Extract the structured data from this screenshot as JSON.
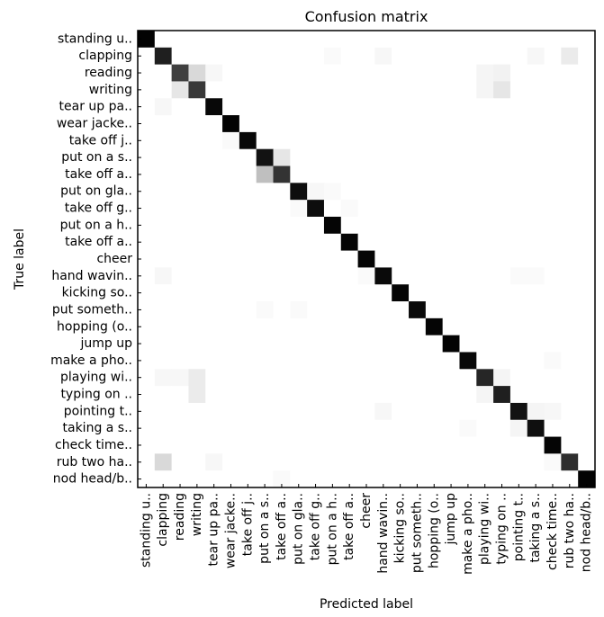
{
  "chart_data": {
    "type": "heatmap",
    "title": "Confusion matrix",
    "xlabel": "Predicted label",
    "ylabel": "True label",
    "labels": [
      "standing u..",
      "clapping",
      "reading",
      "writing",
      "tear up pa..",
      "wear jacke..",
      "take off j..",
      "put on a s..",
      "take off a..",
      "put on gla..",
      "take off g..",
      "put on a h..",
      "take off a..",
      "cheer",
      "hand wavin..",
      "kicking so..",
      "put someth..",
      "hopping (o..",
      "jump up",
      "make a pho..",
      "playing wi..",
      "typing on ..",
      "pointing t..",
      "taking a s..",
      "check time..",
      "rub two ha..",
      "nod head/b.."
    ],
    "colormap": "greys",
    "value_range": [
      0,
      1
    ],
    "matrix": [
      [
        0.99,
        0,
        0,
        0,
        0,
        0,
        0,
        0,
        0,
        0,
        0,
        0,
        0,
        0,
        0,
        0,
        0,
        0,
        0,
        0,
        0,
        0,
        0,
        0,
        0,
        0,
        0
      ],
      [
        0,
        0.88,
        0,
        0,
        0,
        0,
        0,
        0,
        0,
        0,
        0,
        0.02,
        0,
        0,
        0.03,
        0,
        0,
        0,
        0,
        0,
        0,
        0,
        0,
        0.03,
        0,
        0.08,
        0
      ],
      [
        0,
        0,
        0.75,
        0.15,
        0.03,
        0,
        0,
        0,
        0,
        0,
        0,
        0,
        0,
        0,
        0,
        0,
        0,
        0,
        0,
        0,
        0.04,
        0.05,
        0,
        0,
        0,
        0,
        0
      ],
      [
        0,
        0,
        0.1,
        0.78,
        0,
        0,
        0,
        0,
        0,
        0,
        0,
        0,
        0,
        0,
        0,
        0,
        0,
        0,
        0,
        0,
        0.04,
        0.1,
        0,
        0,
        0,
        0,
        0
      ],
      [
        0,
        0.03,
        0,
        0,
        0.97,
        0,
        0,
        0,
        0,
        0,
        0,
        0,
        0,
        0,
        0,
        0,
        0,
        0,
        0,
        0,
        0,
        0,
        0,
        0,
        0,
        0,
        0
      ],
      [
        0,
        0,
        0,
        0,
        0,
        0.99,
        0,
        0,
        0,
        0,
        0,
        0,
        0,
        0,
        0,
        0,
        0,
        0,
        0,
        0,
        0,
        0,
        0,
        0,
        0,
        0,
        0
      ],
      [
        0,
        0,
        0,
        0,
        0,
        0.02,
        0.97,
        0,
        0,
        0,
        0,
        0,
        0,
        0,
        0,
        0,
        0,
        0,
        0,
        0,
        0,
        0,
        0,
        0,
        0,
        0,
        0
      ],
      [
        0,
        0,
        0,
        0,
        0,
        0,
        0,
        0.93,
        0.1,
        0,
        0,
        0,
        0,
        0,
        0,
        0,
        0,
        0,
        0,
        0,
        0,
        0,
        0,
        0,
        0,
        0,
        0
      ],
      [
        0,
        0,
        0,
        0,
        0,
        0,
        0,
        0.25,
        0.8,
        0,
        0,
        0,
        0,
        0,
        0,
        0,
        0,
        0,
        0,
        0,
        0,
        0,
        0,
        0,
        0,
        0,
        0
      ],
      [
        0,
        0,
        0,
        0,
        0,
        0,
        0,
        0,
        0,
        0.95,
        0.03,
        0.02,
        0,
        0,
        0,
        0,
        0,
        0,
        0,
        0,
        0,
        0,
        0,
        0,
        0,
        0,
        0
      ],
      [
        0,
        0,
        0,
        0,
        0,
        0,
        0,
        0,
        0,
        0.02,
        0.95,
        0,
        0.02,
        0,
        0,
        0,
        0,
        0,
        0,
        0,
        0,
        0,
        0,
        0,
        0,
        0,
        0
      ],
      [
        0,
        0,
        0,
        0,
        0,
        0,
        0,
        0,
        0,
        0,
        0,
        0.98,
        0,
        0,
        0,
        0,
        0,
        0,
        0,
        0,
        0,
        0,
        0,
        0,
        0,
        0,
        0
      ],
      [
        0,
        0,
        0,
        0,
        0,
        0,
        0,
        0,
        0,
        0,
        0,
        0,
        0.98,
        0,
        0,
        0,
        0,
        0,
        0,
        0,
        0,
        0,
        0,
        0,
        0,
        0,
        0
      ],
      [
        0,
        0,
        0,
        0,
        0,
        0,
        0,
        0,
        0,
        0,
        0,
        0,
        0,
        0.98,
        0,
        0,
        0,
        0,
        0,
        0,
        0,
        0,
        0,
        0,
        0,
        0,
        0
      ],
      [
        0,
        0.03,
        0,
        0,
        0,
        0,
        0,
        0,
        0,
        0,
        0,
        0,
        0,
        0.02,
        0.96,
        0,
        0,
        0,
        0,
        0,
        0,
        0,
        0.02,
        0.02,
        0,
        0,
        0
      ],
      [
        0,
        0,
        0,
        0,
        0,
        0,
        0,
        0,
        0,
        0,
        0,
        0,
        0,
        0,
        0,
        0.98,
        0,
        0,
        0,
        0,
        0,
        0,
        0,
        0,
        0,
        0,
        0
      ],
      [
        0,
        0,
        0,
        0,
        0,
        0,
        0,
        0.02,
        0,
        0.02,
        0,
        0,
        0,
        0,
        0,
        0,
        0.96,
        0,
        0,
        0,
        0,
        0,
        0,
        0,
        0,
        0,
        0
      ],
      [
        0,
        0,
        0,
        0,
        0,
        0,
        0,
        0,
        0,
        0,
        0,
        0,
        0,
        0,
        0,
        0,
        0,
        0.98,
        0,
        0,
        0,
        0,
        0,
        0,
        0,
        0,
        0
      ],
      [
        0,
        0,
        0,
        0,
        0,
        0,
        0,
        0,
        0,
        0,
        0,
        0,
        0,
        0,
        0,
        0,
        0,
        0,
        0.99,
        0,
        0,
        0,
        0,
        0,
        0,
        0,
        0
      ],
      [
        0,
        0,
        0,
        0,
        0,
        0,
        0,
        0,
        0,
        0,
        0,
        0,
        0,
        0,
        0,
        0,
        0,
        0,
        0,
        0.97,
        0,
        0,
        0,
        0,
        0.02,
        0,
        0
      ],
      [
        0,
        0.03,
        0.03,
        0.08,
        0,
        0,
        0,
        0,
        0,
        0,
        0,
        0,
        0,
        0,
        0,
        0,
        0,
        0,
        0,
        0,
        0.85,
        0.04,
        0,
        0,
        0,
        0,
        0
      ],
      [
        0,
        0,
        0,
        0.08,
        0,
        0,
        0,
        0,
        0,
        0,
        0,
        0,
        0,
        0,
        0,
        0,
        0,
        0,
        0,
        0,
        0.04,
        0.88,
        0,
        0,
        0,
        0,
        0
      ],
      [
        0,
        0,
        0,
        0,
        0,
        0,
        0,
        0,
        0,
        0,
        0,
        0,
        0,
        0,
        0.03,
        0,
        0,
        0,
        0,
        0,
        0,
        0,
        0.93,
        0.04,
        0.03,
        0,
        0
      ],
      [
        0,
        0,
        0,
        0,
        0,
        0,
        0,
        0,
        0,
        0,
        0,
        0,
        0,
        0,
        0,
        0,
        0,
        0,
        0,
        0.02,
        0,
        0,
        0.04,
        0.94,
        0,
        0,
        0
      ],
      [
        0,
        0,
        0,
        0,
        0,
        0,
        0,
        0,
        0,
        0,
        0,
        0,
        0,
        0,
        0,
        0,
        0,
        0,
        0,
        0,
        0,
        0,
        0,
        0,
        0.98,
        0,
        0
      ],
      [
        0,
        0.15,
        0,
        0,
        0.03,
        0,
        0,
        0,
        0,
        0,
        0,
        0,
        0,
        0,
        0,
        0,
        0,
        0,
        0,
        0,
        0,
        0,
        0,
        0,
        0.02,
        0.82,
        0
      ],
      [
        0,
        0,
        0,
        0,
        0,
        0,
        0,
        0,
        0.02,
        0,
        0,
        0,
        0,
        0,
        0,
        0,
        0,
        0,
        0,
        0,
        0,
        0,
        0,
        0,
        0,
        0,
        0.99
      ]
    ]
  }
}
